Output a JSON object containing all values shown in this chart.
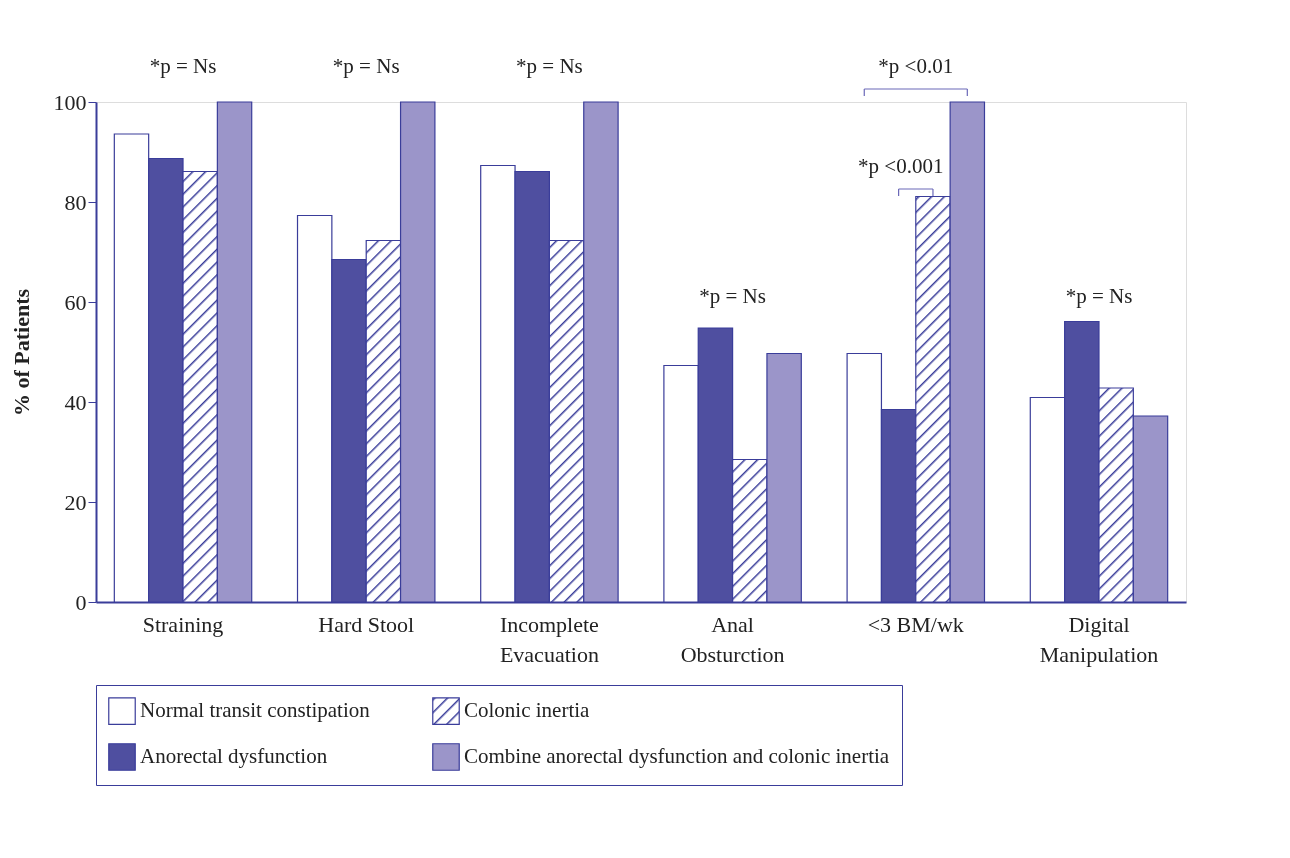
{
  "chart_data": {
    "type": "bar",
    "ylabel": "% of Patients",
    "categories": [
      "Straining",
      "Hard Stool",
      "Incomplete\nEvacuation",
      "Anal\nObsturction",
      "<3 BM/wk",
      "Digital\nManipulation"
    ],
    "series": [
      {
        "name": "Normal transit constipation",
        "color": "#ffffff",
        "values": [
          93.6,
          77.3,
          87.3,
          47.3,
          49.7,
          40.9
        ]
      },
      {
        "name": "Anorectal dysfunction",
        "color": "#4f4fa0",
        "values": [
          88.7,
          68.5,
          86.1,
          54.8,
          38.5,
          56.1
        ]
      },
      {
        "name": "Colonic inertia",
        "color": "#3a3d9a",
        "values": [
          86.1,
          72.3,
          72.3,
          28.5,
          81.1,
          42.8
        ]
      },
      {
        "name": "Combine anorectal dysfunction and colonic inertia",
        "color": "#9b95c9",
        "values": [
          100,
          100,
          100,
          49.7,
          100,
          37.2
        ]
      }
    ],
    "ylim": [
      0,
      100
    ],
    "yticks": [
      0,
      20,
      40,
      60,
      80,
      100
    ],
    "grid": false,
    "legend": "bottom",
    "annotations": [
      "*p = Ns",
      "*p = Ns",
      "*p = Ns",
      "*p = Ns",
      "*p <0.01",
      "*p <0.001",
      "*p = Ns"
    ]
  }
}
